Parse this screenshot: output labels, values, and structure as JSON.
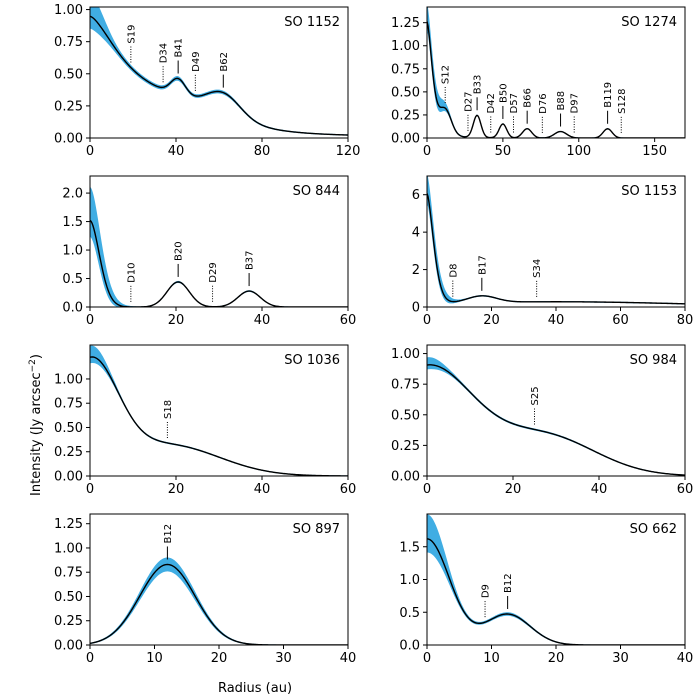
{
  "figure": {
    "xlabel": "Radius (au)",
    "ylabel_main": "Intensity (Jy arcsec",
    "ylabel_exp": "−2",
    "ylabel_close": ")",
    "band_color": "#1f9fde",
    "line_color": "#000000"
  },
  "chart_data": [
    {
      "type": "line",
      "title": "SO 1152",
      "xlim": [
        0,
        120
      ],
      "ylim": [
        0,
        1.02
      ],
      "xticks": [
        0,
        40,
        80,
        120
      ],
      "xtick_labels": [
        "0",
        "40",
        "80",
        "120"
      ],
      "yticks": [
        0,
        0.25,
        0.5,
        0.75,
        1.0
      ],
      "ytick_labels": [
        "0.00",
        "0.25",
        "0.50",
        "0.75",
        "1.00"
      ],
      "base": [
        0.86,
        0.2,
        18,
        1.5
      ],
      "gaussians": [
        [
          0.22,
          34,
          25
        ],
        [
          0.13,
          41,
          3.5
        ],
        [
          0.17,
          62,
          8
        ]
      ],
      "band_halfwidth": [
        0.14,
        0.03
      ],
      "annotations": [
        {
          "label": "S19",
          "x": 19,
          "style": "dotted"
        },
        {
          "label": "D34",
          "x": 34,
          "style": "dotted"
        },
        {
          "label": "B41",
          "x": 41,
          "style": "solid"
        },
        {
          "label": "D49",
          "x": 49,
          "style": "dotted"
        },
        {
          "label": "B62",
          "x": 62,
          "style": "solid"
        }
      ]
    },
    {
      "type": "line",
      "title": "SO 1274",
      "xlim": [
        0,
        170
      ],
      "ylim": [
        0,
        1.42
      ],
      "xticks": [
        0,
        50,
        100,
        150
      ],
      "xtick_labels": [
        "0",
        "50",
        "100",
        "150"
      ],
      "yticks": [
        0,
        0.25,
        0.5,
        0.75,
        1.0,
        1.25
      ],
      "ytick_labels": [
        "0.00",
        "0.25",
        "0.50",
        "0.75",
        "1.00",
        "1.25"
      ],
      "base": [
        1.26,
        0.05,
        5,
        1.6
      ],
      "gaussians": [
        [
          0.28,
          12,
          4
        ],
        [
          0.24,
          33,
          2.5
        ],
        [
          0.15,
          50,
          2.5
        ],
        [
          0.1,
          66,
          3
        ],
        [
          0.07,
          88,
          4
        ],
        [
          0.1,
          119,
          3
        ]
      ],
      "band_halfwidth": [
        0.18,
        0.01
      ],
      "annotations": [
        {
          "label": "S12",
          "x": 12,
          "style": "dotted"
        },
        {
          "label": "D27",
          "x": 27,
          "style": "dotted"
        },
        {
          "label": "B33",
          "x": 33,
          "style": "solid"
        },
        {
          "label": "D42",
          "x": 42,
          "style": "dotted"
        },
        {
          "label": "B50",
          "x": 50,
          "style": "solid"
        },
        {
          "label": "D57",
          "x": 57,
          "style": "dotted"
        },
        {
          "label": "B66",
          "x": 66,
          "style": "solid"
        },
        {
          "label": "D76",
          "x": 76,
          "style": "dotted"
        },
        {
          "label": "B88",
          "x": 88,
          "style": "solid"
        },
        {
          "label": "D97",
          "x": 97,
          "style": "dotted"
        },
        {
          "label": "B119",
          "x": 119,
          "style": "solid"
        },
        {
          "label": "S128",
          "x": 128,
          "style": "dotted"
        }
      ]
    },
    {
      "type": "line",
      "title": "SO 844",
      "xlim": [
        0,
        60
      ],
      "ylim": [
        0,
        2.3
      ],
      "xticks": [
        0,
        20,
        40,
        60
      ],
      "xtick_labels": [
        "0",
        "20",
        "40",
        "60"
      ],
      "yticks": [
        0,
        0.5,
        1.0,
        1.5,
        2.0
      ],
      "ytick_labels": [
        "0.0",
        "0.5",
        "1.0",
        "1.5",
        "2.0"
      ],
      "base": [
        1.52,
        0.0,
        3.2,
        1.8
      ],
      "gaussians": [
        [
          0.44,
          20.5,
          2.6
        ],
        [
          0.28,
          37,
          2.6
        ]
      ],
      "band_halfwidth": [
        0.55,
        0.02
      ],
      "annotations": [
        {
          "label": "D10",
          "x": 9.5,
          "style": "dotted"
        },
        {
          "label": "B20",
          "x": 20.5,
          "style": "solid"
        },
        {
          "label": "D29",
          "x": 28.5,
          "style": "dotted"
        },
        {
          "label": "B37",
          "x": 37,
          "style": "solid"
        }
      ]
    },
    {
      "type": "line",
      "title": "SO 1153",
      "xlim": [
        0,
        80
      ],
      "ylim": [
        0,
        7
      ],
      "xticks": [
        0,
        20,
        40,
        60,
        80
      ],
      "xtick_labels": [
        "0",
        "20",
        "40",
        "60",
        "80"
      ],
      "yticks": [
        0,
        2,
        4,
        6
      ],
      "ytick_labels": [
        "0",
        "2",
        "4",
        "6"
      ],
      "base": [
        5.9,
        0.0,
        2.9,
        1.6
      ],
      "gaussians": [
        [
          0.36,
          17,
          4.5
        ],
        [
          0.28,
          40,
          40
        ]
      ],
      "band_halfwidth": [
        0.9,
        0.02
      ],
      "annotations": [
        {
          "label": "D8",
          "x": 8,
          "style": "dotted"
        },
        {
          "label": "B17",
          "x": 17,
          "style": "solid"
        },
        {
          "label": "S34",
          "x": 34,
          "style": "dotted"
        }
      ]
    },
    {
      "type": "line",
      "title": "SO 1036",
      "xlim": [
        0,
        60
      ],
      "ylim": [
        0,
        1.35
      ],
      "xticks": [
        0,
        20,
        40,
        60
      ],
      "xtick_labels": [
        "0",
        "20",
        "40",
        "60"
      ],
      "yticks": [
        0,
        0.25,
        0.5,
        0.75,
        1.0
      ],
      "ytick_labels": [
        "0.00",
        "0.25",
        "0.50",
        "0.75",
        "1.00"
      ],
      "base": [
        1.12,
        0.0,
        9,
        2
      ],
      "gaussians": [
        [
          0.32,
          18,
          12
        ]
      ],
      "band_halfwidth": [
        0.1,
        0.01
      ],
      "annotations": [
        {
          "label": "S18",
          "x": 18,
          "style": "dotted"
        }
      ]
    },
    {
      "type": "line",
      "title": "SO 984",
      "xlim": [
        0,
        60
      ],
      "ylim": [
        0,
        1.07
      ],
      "xticks": [
        0,
        20,
        40,
        60
      ],
      "xtick_labels": [
        "0",
        "20",
        "40",
        "60"
      ],
      "yticks": [
        0,
        0.25,
        0.5,
        0.75,
        1.0
      ],
      "ytick_labels": [
        "0.00",
        "0.25",
        "0.50",
        "0.75",
        "1.00"
      ],
      "base": [
        0.88,
        0.0,
        15,
        2
      ],
      "gaussians": [
        [
          0.33,
          27,
          12
        ]
      ],
      "band_halfwidth": [
        0.05,
        0.01
      ],
      "annotations": [
        {
          "label": "S25",
          "x": 25,
          "style": "dotted"
        }
      ]
    },
    {
      "type": "line",
      "title": "SO 897",
      "xlim": [
        0,
        40
      ],
      "ylim": [
        0,
        1.35
      ],
      "xticks": [
        0,
        10,
        20,
        30,
        40
      ],
      "xtick_labels": [
        "0",
        "10",
        "20",
        "30",
        "40"
      ],
      "yticks": [
        0,
        0.25,
        0.5,
        0.75,
        1.0,
        1.25
      ],
      "ytick_labels": [
        "0.00",
        "0.25",
        "0.50",
        "0.75",
        "1.00",
        "1.25"
      ],
      "base": [
        0.0,
        0.0,
        5,
        2
      ],
      "gaussians": [
        [
          0.83,
          12,
          4.3
        ]
      ],
      "band_halfwidth": [
        0.0,
        0.08
      ],
      "annotations": [
        {
          "label": "B12",
          "x": 12,
          "style": "solid"
        }
      ]
    },
    {
      "type": "line",
      "title": "SO 662",
      "xlim": [
        0,
        40
      ],
      "ylim": [
        0,
        2.0
      ],
      "xticks": [
        0,
        10,
        20,
        30,
        40
      ],
      "xtick_labels": [
        "0",
        "10",
        "20",
        "30",
        "40"
      ],
      "yticks": [
        0,
        0.5,
        1.0,
        1.5
      ],
      "ytick_labels": [
        "0.0",
        "0.5",
        "1.0",
        "1.5"
      ],
      "base": [
        1.62,
        0.0,
        5,
        2
      ],
      "gaussians": [
        [
          0.47,
          12.5,
          3.5
        ]
      ],
      "band_halfwidth": [
        0.3,
        0.04
      ],
      "annotations": [
        {
          "label": "D9",
          "x": 9,
          "style": "dotted"
        },
        {
          "label": "B12",
          "x": 12.5,
          "style": "solid"
        }
      ]
    }
  ]
}
